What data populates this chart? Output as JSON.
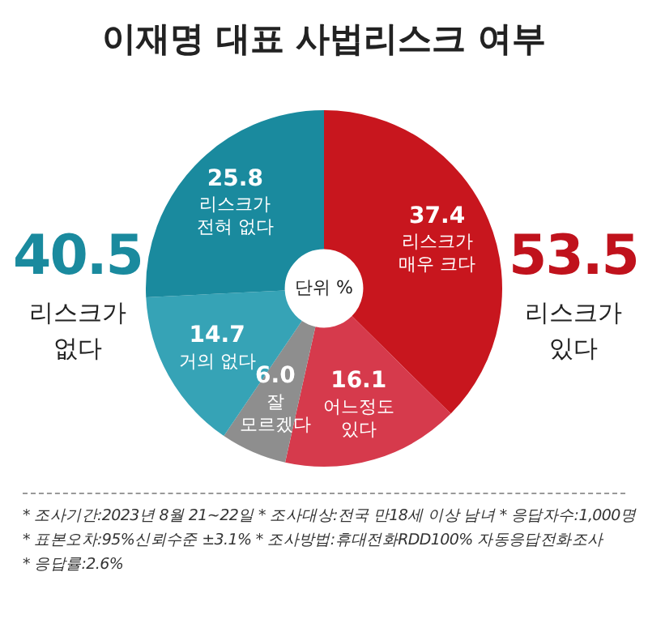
{
  "chart_data": {
    "type": "donut",
    "title": "이재명 대표 사법리스크 여부",
    "categories": [
      "리스크가 매우 크다",
      "어느정도 있다",
      "잘 모르겠다",
      "거의 없다",
      "리스크가 전혀 없다"
    ],
    "values": [
      37.4,
      16.1,
      6.0,
      14.7,
      25.8
    ],
    "colors": [
      "#c8161e",
      "#d63a4c",
      "#8e8e8e",
      "#36a3b6",
      "#1a8a9e"
    ],
    "value_labels": [
      "37.4",
      "16.1",
      "6.0",
      "14.7",
      "25.8"
    ],
    "legend": false,
    "annotations": [
      "단위 %",
      "40.5",
      "리스크가 없다",
      "53.5",
      "리스크가 있다",
      "* 조사기간:2023년 8월 21~22일  * 조사대상:전국 만18세 이상 남녀  * 응답자수:1,000명",
      "* 표본오차:95%신뢰수준 ±3.1%  * 조사방법:휴대전화RDD100% 자동응답전화조사",
      "* 응답률:2.6%"
    ]
  }
}
